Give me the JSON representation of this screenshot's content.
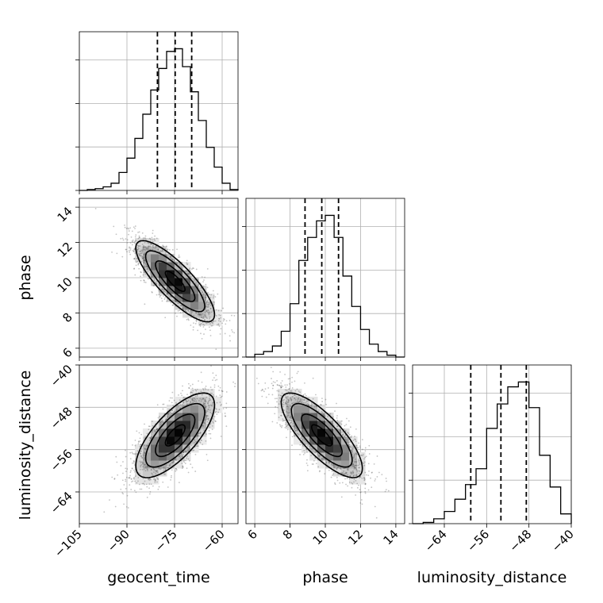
{
  "chart_data": {
    "type": "corner",
    "parameters": [
      "geocent_time",
      "phase",
      "luminosity_distance"
    ],
    "axis_labels": {
      "x": [
        "geocent_time",
        "phase",
        "luminosity_distance"
      ],
      "y": [
        "phase",
        "luminosity_distance"
      ]
    },
    "ranges": {
      "geocent_time": [
        -105,
        -55
      ],
      "phase": [
        5.5,
        14.5
      ],
      "luminosity_distance": [
        -70,
        -40
      ]
    },
    "ticks": {
      "geocent_time": {
        "values": [
          -105,
          -90,
          -75,
          -60
        ],
        "labels": [
          "−105",
          "−90",
          "−75",
          "−60"
        ]
      },
      "phase": {
        "values": [
          6,
          8,
          10,
          12,
          14
        ],
        "labels": [
          "6",
          "8",
          "10",
          "12",
          "14"
        ]
      },
      "luminosity_distance": {
        "values": [
          -64,
          -56,
          -48,
          -40
        ],
        "labels": [
          "−64",
          "−56",
          "−48",
          "−40"
        ]
      }
    },
    "grid": true,
    "marginals": {
      "geocent_time": {
        "bin_edges": [
          -105,
          -102.5,
          -100,
          -97.5,
          -95,
          -92.5,
          -90,
          -87.5,
          -85,
          -82.5,
          -80,
          -77.5,
          -75,
          -72.5,
          -70,
          -67.5,
          -65,
          -62.5,
          -60,
          -57.5,
          -55
        ],
        "counts": [
          0,
          1,
          2,
          4,
          8,
          20,
          36,
          58,
          85,
          112,
          136,
          155,
          158,
          138,
          110,
          78,
          48,
          26,
          8,
          1
        ],
        "quantiles": [
          -80.4,
          -74.8,
          -69.6
        ]
      },
      "phase": {
        "bin_edges": [
          5.5,
          6.0,
          6.5,
          7.0,
          7.5,
          8.0,
          8.5,
          9.0,
          9.5,
          10.0,
          10.5,
          11.0,
          11.5,
          12.0,
          12.5,
          13.0,
          13.5,
          14.0,
          14.5
        ],
        "counts": [
          0,
          3,
          6,
          12,
          28,
          58,
          105,
          130,
          148,
          154,
          130,
          88,
          55,
          30,
          14,
          6,
          2,
          0
        ],
        "quantiles": [
          8.85,
          9.8,
          10.75
        ]
      },
      "luminosity_distance": {
        "bin_edges": [
          -70,
          -68,
          -66,
          -64,
          -62,
          -60,
          -58,
          -56,
          -54,
          -52,
          -50,
          -48,
          -46,
          -44,
          -42,
          -40
        ],
        "counts": [
          0,
          1,
          4,
          10,
          20,
          32,
          45,
          78,
          98,
          112,
          116,
          95,
          56,
          30,
          8
        ],
        "quantiles": [
          -59.0,
          -53.3,
          -48.5
        ]
      }
    },
    "joint": [
      {
        "x": "geocent_time",
        "y": "phase",
        "mean": [
          -74.8,
          9.8
        ],
        "sd": [
          6.2,
          1.15
        ],
        "rho": -0.82,
        "n_samples": 2200
      },
      {
        "x": "geocent_time",
        "y": "luminosity_distance",
        "mean": [
          -74.8,
          -53.3
        ],
        "sd": [
          6.2,
          4.0
        ],
        "rho": 0.72,
        "n_samples": 2200
      },
      {
        "x": "phase",
        "y": "luminosity_distance",
        "mean": [
          9.8,
          -53.3
        ],
        "sd": [
          1.15,
          4.0
        ],
        "rho": -0.78,
        "n_samples": 2200
      }
    ]
  }
}
